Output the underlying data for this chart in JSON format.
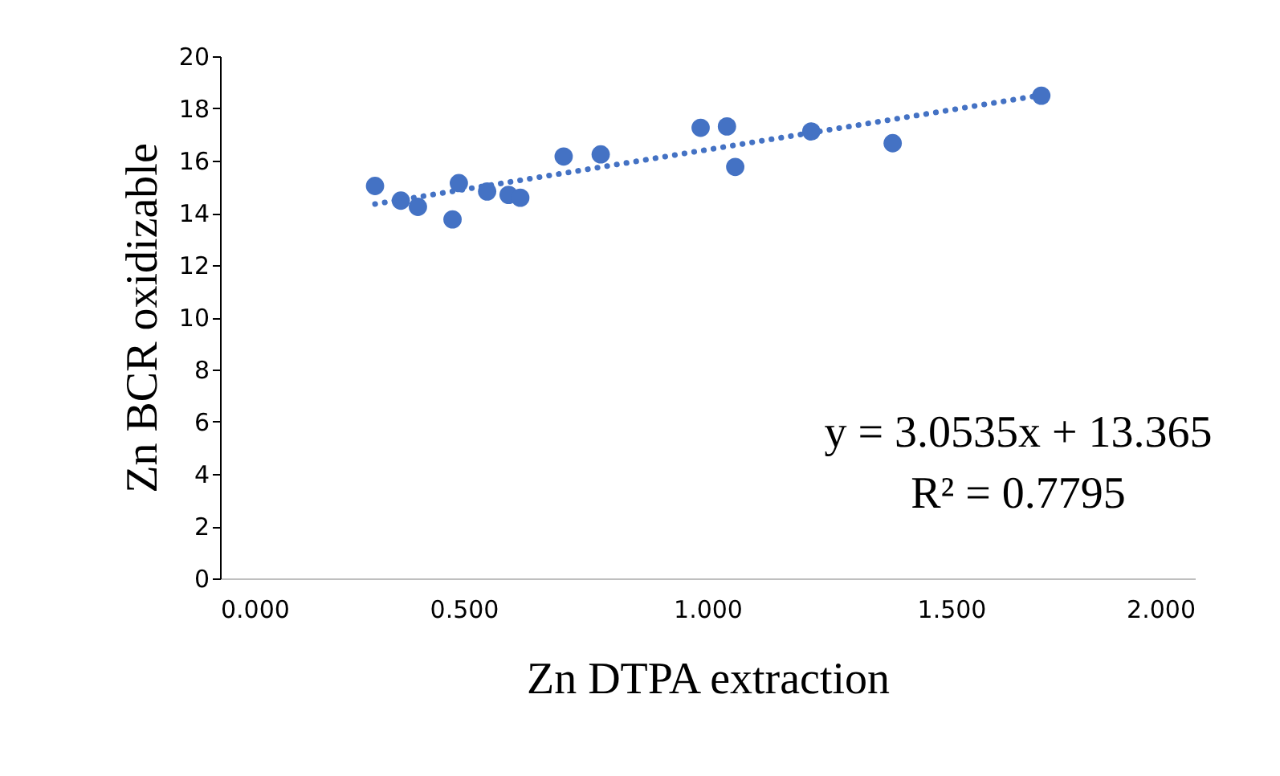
{
  "chart_data": {
    "type": "scatter",
    "xlabel": "Zn DTPA extraction",
    "ylabel": "Zn BCR oxidizable",
    "xlim": [
      0,
      2
    ],
    "xticks": [
      {
        "value": 0,
        "label": "0.000"
      },
      {
        "value": 0.5,
        "label": "0.500"
      },
      {
        "value": 1,
        "label": "1.000"
      },
      {
        "value": 1.5,
        "label": "1.500"
      },
      {
        "value": 2,
        "label": "2.000"
      }
    ],
    "ylim": [
      0,
      20
    ],
    "yticks": [
      0,
      2,
      4,
      6,
      8,
      10,
      12,
      14,
      16,
      18,
      20
    ],
    "grid": false,
    "series": [
      {
        "color": "#4472c4",
        "marker": "circle",
        "x": [
          0.318,
          0.371,
          0.406,
          0.477,
          0.49,
          0.548,
          0.592,
          0.616,
          0.705,
          0.781,
          0.986,
          1.04,
          1.057,
          1.213,
          1.38,
          1.685
        ],
        "values": [
          15.03,
          14.47,
          14.23,
          13.75,
          15.14,
          14.82,
          14.69,
          14.58,
          16.16,
          16.24,
          17.26,
          17.31,
          15.76,
          17.12,
          16.67,
          18.49
        ]
      },
      {
        "type": "line",
        "color": "#4472c4",
        "line_style": "dotted",
        "marker": "none",
        "x": [
          0.318,
          1.685
        ],
        "values": [
          14.34,
          18.51
        ]
      }
    ],
    "annotations": [
      "y = 3.0535x + 13.365",
      "R² = 0.7795"
    ]
  }
}
